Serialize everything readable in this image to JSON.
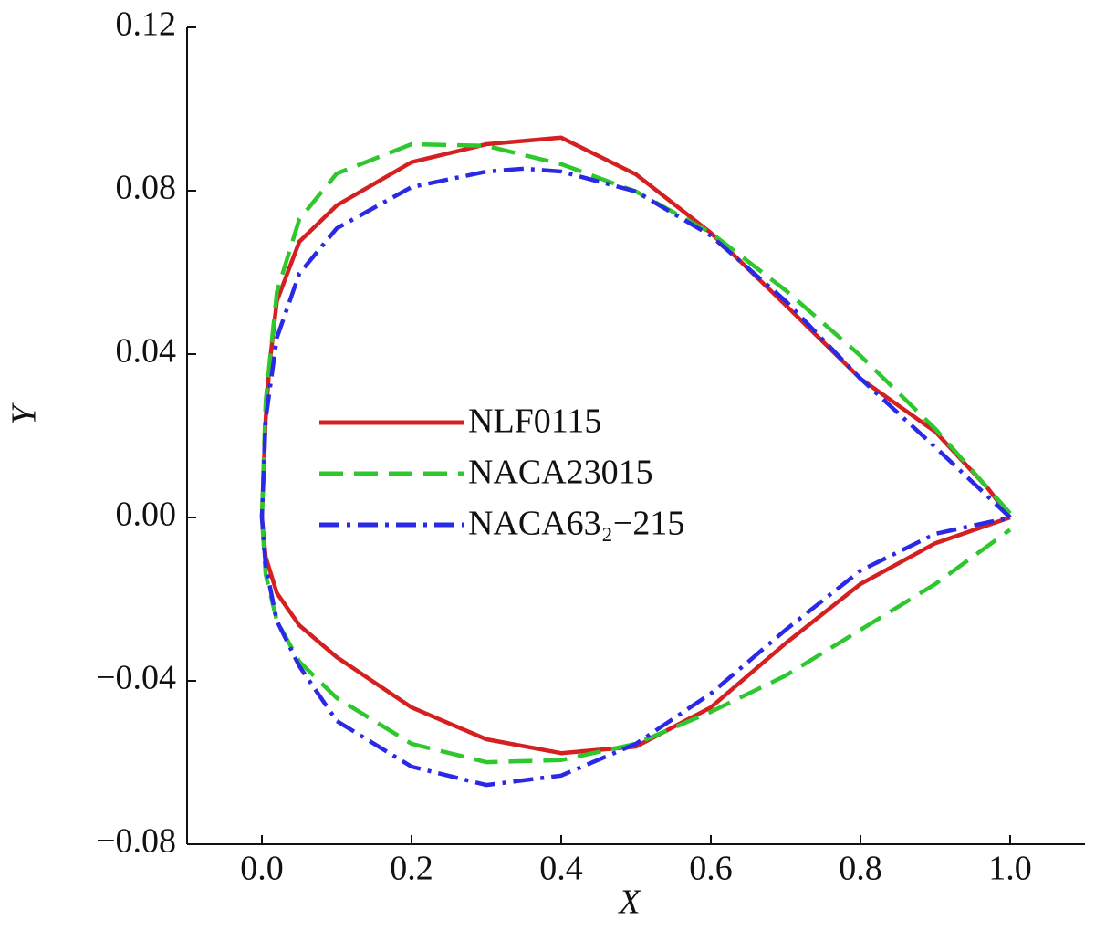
{
  "chart_data": {
    "type": "line",
    "xlabel": "X",
    "ylabel": "Y",
    "xlim": [
      -0.1,
      1.1
    ],
    "xticks": [
      {
        "value": 0,
        "label": "0.0"
      },
      0.2,
      0.4,
      0.6,
      0.8,
      {
        "value": 1,
        "label": "1.0"
      }
    ],
    "ylim": [
      -0.08,
      0.12
    ],
    "yticks": [
      {
        "value": -0.08,
        "label": "−0.08"
      },
      {
        "value": -0.04,
        "label": "−0.04"
      },
      {
        "value": 0,
        "label": "0.00"
      },
      0.04,
      0.08,
      0.12
    ],
    "legend": "left",
    "series": [
      {
        "name": "NLF0115",
        "color": "#d42020",
        "linestyle": "solid",
        "x": [
          1.0,
          0.97,
          0.9,
          0.8,
          0.7,
          0.6,
          0.5,
          0.4,
          0.3,
          0.2,
          0.1,
          0.05,
          0.02,
          0.01,
          0.005,
          0,
          0.005,
          0.02,
          0.05,
          0.1,
          0.2,
          0.3,
          0.4,
          0.5,
          0.6,
          0.7,
          0.8,
          0.9,
          1.0
        ],
        "values": [
          0,
          0.0072,
          0.021,
          0.034,
          0.052,
          0.0697,
          0.084,
          0.093,
          0.0914,
          0.087,
          0.0764,
          0.0675,
          0.053,
          0.037,
          0.024,
          0,
          -0.0096,
          -0.0185,
          -0.0264,
          -0.0342,
          -0.0465,
          -0.0543,
          -0.0577,
          -0.0561,
          -0.0465,
          -0.0308,
          -0.0163,
          -0.0063,
          0
        ]
      },
      {
        "name": "NACA23015",
        "color": "#2ec82e",
        "linestyle": "dashed",
        "x": [
          1.0,
          0.9,
          0.8,
          0.7,
          0.6,
          0.5,
          0.4,
          0.3,
          0.2,
          0.1,
          0.05,
          0.02,
          0.005,
          0,
          0.005,
          0.02,
          0.05,
          0.1,
          0.2,
          0.3,
          0.4,
          0.5,
          0.6,
          0.7,
          0.8,
          0.9,
          1.0
        ],
        "values": [
          0.001,
          0.0217,
          0.0396,
          0.0556,
          0.0697,
          0.0798,
          0.0865,
          0.091,
          0.0914,
          0.0842,
          0.073,
          0.0552,
          0.0284,
          0,
          -0.014,
          -0.0253,
          -0.0353,
          -0.0442,
          -0.0554,
          -0.0599,
          -0.0594,
          -0.0554,
          -0.0476,
          -0.0387,
          -0.0275,
          -0.0163,
          -0.003
        ]
      },
      {
        "name": "NACA63₂−215",
        "color": "#2a2ae6",
        "linestyle": "dashdot",
        "x": [
          1.0,
          0.9,
          0.8,
          0.7,
          0.6,
          0.5,
          0.4,
          0.35,
          0.3,
          0.2,
          0.1,
          0.05,
          0.02,
          0.005,
          0,
          0.005,
          0.02,
          0.05,
          0.1,
          0.2,
          0.3,
          0.4,
          0.5,
          0.6,
          0.7,
          0.8,
          0.9,
          1.0
        ],
        "values": [
          0,
          0.0172,
          0.034,
          0.053,
          0.069,
          0.0798,
          0.0847,
          0.0854,
          0.0847,
          0.0809,
          0.0708,
          0.0597,
          0.044,
          0.0239,
          0,
          -0.0118,
          -0.0253,
          -0.0364,
          -0.0498,
          -0.061,
          -0.0655,
          -0.0632,
          -0.0554,
          -0.0431,
          -0.0275,
          -0.013,
          -0.004,
          0
        ]
      }
    ]
  }
}
